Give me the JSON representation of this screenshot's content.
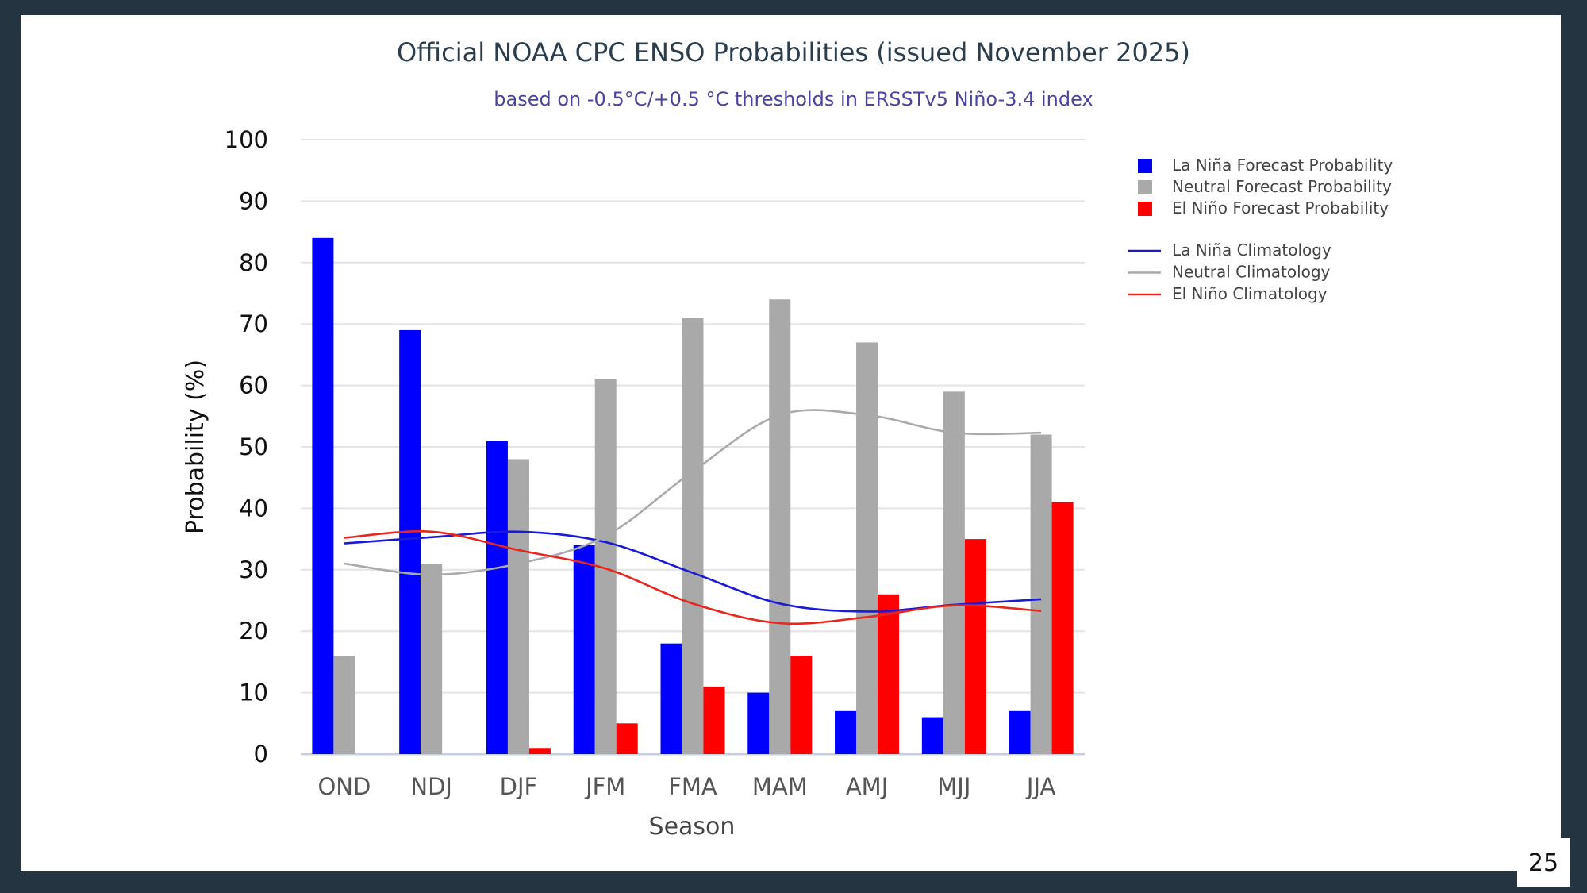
{
  "page_number": "25",
  "chart_data": {
    "type": "bar",
    "title": "Official NOAA CPC ENSO Probabilities (issued November 2025)",
    "subtitle": "based on -0.5°C/+0.5 °C thresholds in ERSSTv5 Niño-3.4 index",
    "xlabel": "Season",
    "ylabel": "Probability (%)",
    "ylim": [
      0,
      100
    ],
    "yticks": [
      "0",
      "10",
      "20",
      "30",
      "40",
      "50",
      "60",
      "70",
      "80",
      "90",
      "100"
    ],
    "grid": true,
    "legend_position": "right",
    "categories": [
      "OND",
      "NDJ",
      "DJF",
      "JFM",
      "FMA",
      "MAM",
      "AMJ",
      "MJJ",
      "JJA"
    ],
    "series": [
      {
        "name": "La Niña Forecast Probability",
        "kind": "bar",
        "color": "#0000ff",
        "values": [
          84,
          69,
          51,
          34,
          18,
          10,
          7,
          6,
          7
        ]
      },
      {
        "name": "Neutral Forecast Probability",
        "kind": "bar",
        "color": "#a9a9a9",
        "values": [
          16,
          31,
          48,
          61,
          71,
          74,
          67,
          59,
          52
        ]
      },
      {
        "name": "El Niño Forecast Probability",
        "kind": "bar",
        "color": "#ff0000",
        "values": [
          0,
          0,
          1,
          5,
          11,
          16,
          26,
          35,
          41
        ]
      },
      {
        "name": "La Niña Climatology",
        "kind": "line",
        "color": "#1a1ad6",
        "values": [
          34.3,
          35.3,
          36.2,
          34.5,
          29.5,
          24.5,
          23.2,
          24.3,
          25.2
        ]
      },
      {
        "name": "Neutral Climatology",
        "kind": "line",
        "color": "#aaaaaa",
        "values": [
          31,
          29.2,
          31,
          35.5,
          46,
          55.2,
          55.2,
          52.3,
          52.3
        ]
      },
      {
        "name": "El Niño Climatology",
        "kind": "line",
        "color": "#e8261e",
        "values": [
          35.2,
          36.2,
          33.2,
          30.2,
          24.5,
          21.3,
          22.3,
          24.2,
          23.3
        ]
      }
    ]
  }
}
